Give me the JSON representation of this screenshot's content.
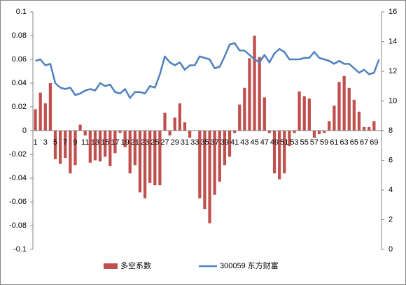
{
  "chart_data": {
    "type": "bar",
    "categories": [
      1,
      null,
      3,
      null,
      5,
      null,
      7,
      null,
      9,
      null,
      11,
      null,
      13,
      null,
      15,
      null,
      17,
      null,
      19,
      null,
      21,
      null,
      23,
      null,
      25,
      null,
      27,
      null,
      29,
      null,
      31,
      null,
      33,
      null,
      35,
      null,
      37,
      null,
      39,
      null,
      41,
      null,
      43,
      null,
      45,
      null,
      47,
      null,
      49,
      null,
      51,
      null,
      53,
      null,
      55,
      null,
      57,
      null,
      59,
      null,
      61,
      null,
      63,
      null,
      65,
      null,
      67,
      null,
      69,
      null
    ],
    "series": [
      {
        "name": "多空系数",
        "type": "bar",
        "axis": "y",
        "color": "#c0504d",
        "values": [
          0.018,
          0.032,
          0.023,
          0.04,
          -0.024,
          -0.028,
          -0.023,
          -0.036,
          -0.029,
          0.005,
          -0.004,
          -0.027,
          -0.025,
          -0.026,
          -0.022,
          -0.03,
          -0.019,
          -0.002,
          -0.014,
          -0.036,
          -0.029,
          -0.052,
          -0.057,
          -0.044,
          -0.046,
          -0.046,
          0.015,
          -0.004,
          0.011,
          0.023,
          0.007,
          -0.006,
          0,
          -0.057,
          -0.066,
          -0.078,
          -0.054,
          -0.043,
          -0.029,
          -0.022,
          -0.002,
          0.022,
          0.036,
          0.061,
          0.08,
          0.062,
          0.028,
          -0.002,
          -0.036,
          -0.041,
          -0.036,
          -0.013,
          -0.002,
          0.033,
          0.029,
          0.027,
          -0.006,
          -0.003,
          -0.002,
          0.008,
          0.021,
          0.041,
          0.046,
          0.036,
          0.026,
          0.016,
          0.003,
          0.003,
          0.008,
          0
        ]
      },
      {
        "name": "300059 东方财富",
        "type": "line",
        "axis": "y2",
        "color": "#4f81bd",
        "values": [
          12.7,
          12.8,
          12.4,
          12.5,
          11.2,
          10.9,
          10.8,
          10.9,
          10.4,
          10.5,
          10.7,
          10.8,
          10.7,
          11.2,
          11.0,
          11.1,
          10.6,
          10.5,
          10.8,
          10.2,
          10.6,
          10.6,
          10.5,
          11.0,
          10.9,
          11.8,
          13.0,
          12.6,
          12.4,
          12.6,
          12.1,
          12.4,
          12.4,
          13.0,
          12.9,
          12.8,
          12.2,
          12.3,
          13.0,
          13.8,
          13.9,
          13.4,
          13.4,
          13.1,
          12.8,
          12.6,
          13.1,
          12.6,
          13.2,
          13.5,
          13.3,
          12.8,
          12.8,
          12.8,
          12.9,
          12.9,
          13.3,
          12.9,
          12.8,
          12.7,
          12.5,
          12.7,
          12.5,
          12.5,
          12.2,
          11.9,
          12.1,
          11.8,
          11.9,
          12.8
        ]
      }
    ],
    "ylim": [
      -0.1,
      0.1
    ],
    "yticks": [
      -0.1,
      -0.08,
      -0.06,
      -0.04,
      -0.02,
      0,
      0.02,
      0.04,
      0.06,
      0.08,
      0.1
    ],
    "y2lim": [
      0,
      16
    ],
    "y2ticks": [
      0,
      2,
      4,
      6,
      8,
      10,
      12,
      14,
      16
    ],
    "grid": false,
    "legend": "bottom"
  }
}
